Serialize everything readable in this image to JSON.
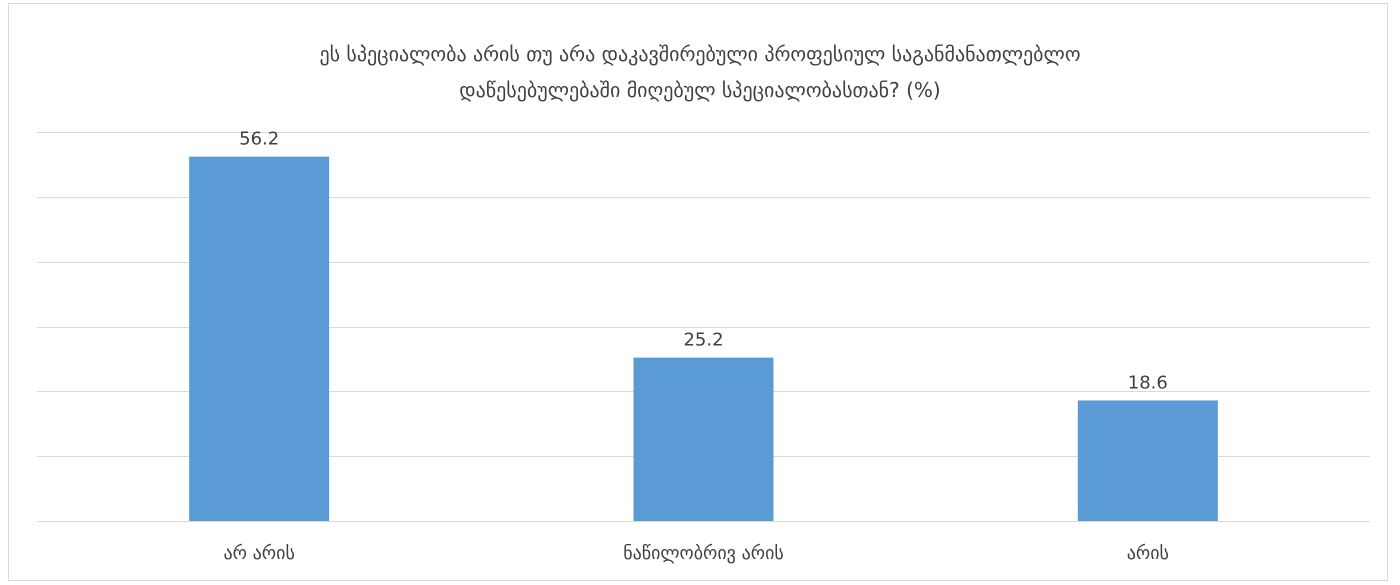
{
  "chart_data": {
    "type": "bar",
    "title_lines": [
      "ეს სპეციალობა არის თუ არა დაკავშირებული პროფესიულ საგანმანათლებლო",
      "დაწესებულებაში მიღებულ სპეციალობასთან? (%)"
    ],
    "categories": [
      "არ არის",
      "ნაწილობრივ არის",
      "არის"
    ],
    "values": [
      56.2,
      25.2,
      18.6
    ],
    "ylim": [
      0,
      60
    ],
    "grid": true,
    "bar_color": "#5b9bd5",
    "gridline_color": "#d9d9d9",
    "legend": "none"
  }
}
